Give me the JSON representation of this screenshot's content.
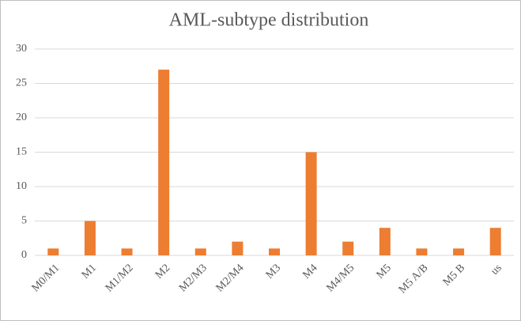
{
  "chart_data": {
    "type": "bar",
    "title": "AML-subtype distribution",
    "categories": [
      "M0/M1",
      "M1",
      "M1/M2",
      "M2",
      "M2/M3",
      "M2/M4",
      "M3",
      "M4",
      "M4/M5",
      "M5",
      "M5 A/B",
      "M5 B",
      "us"
    ],
    "values": [
      1,
      5,
      1,
      27,
      1,
      2,
      1,
      15,
      2,
      4,
      1,
      1,
      4
    ],
    "color": "#ed7d31",
    "ylim": [
      0,
      30
    ],
    "yticks": [
      0,
      5,
      10,
      15,
      20,
      25,
      30
    ],
    "grid": true
  }
}
